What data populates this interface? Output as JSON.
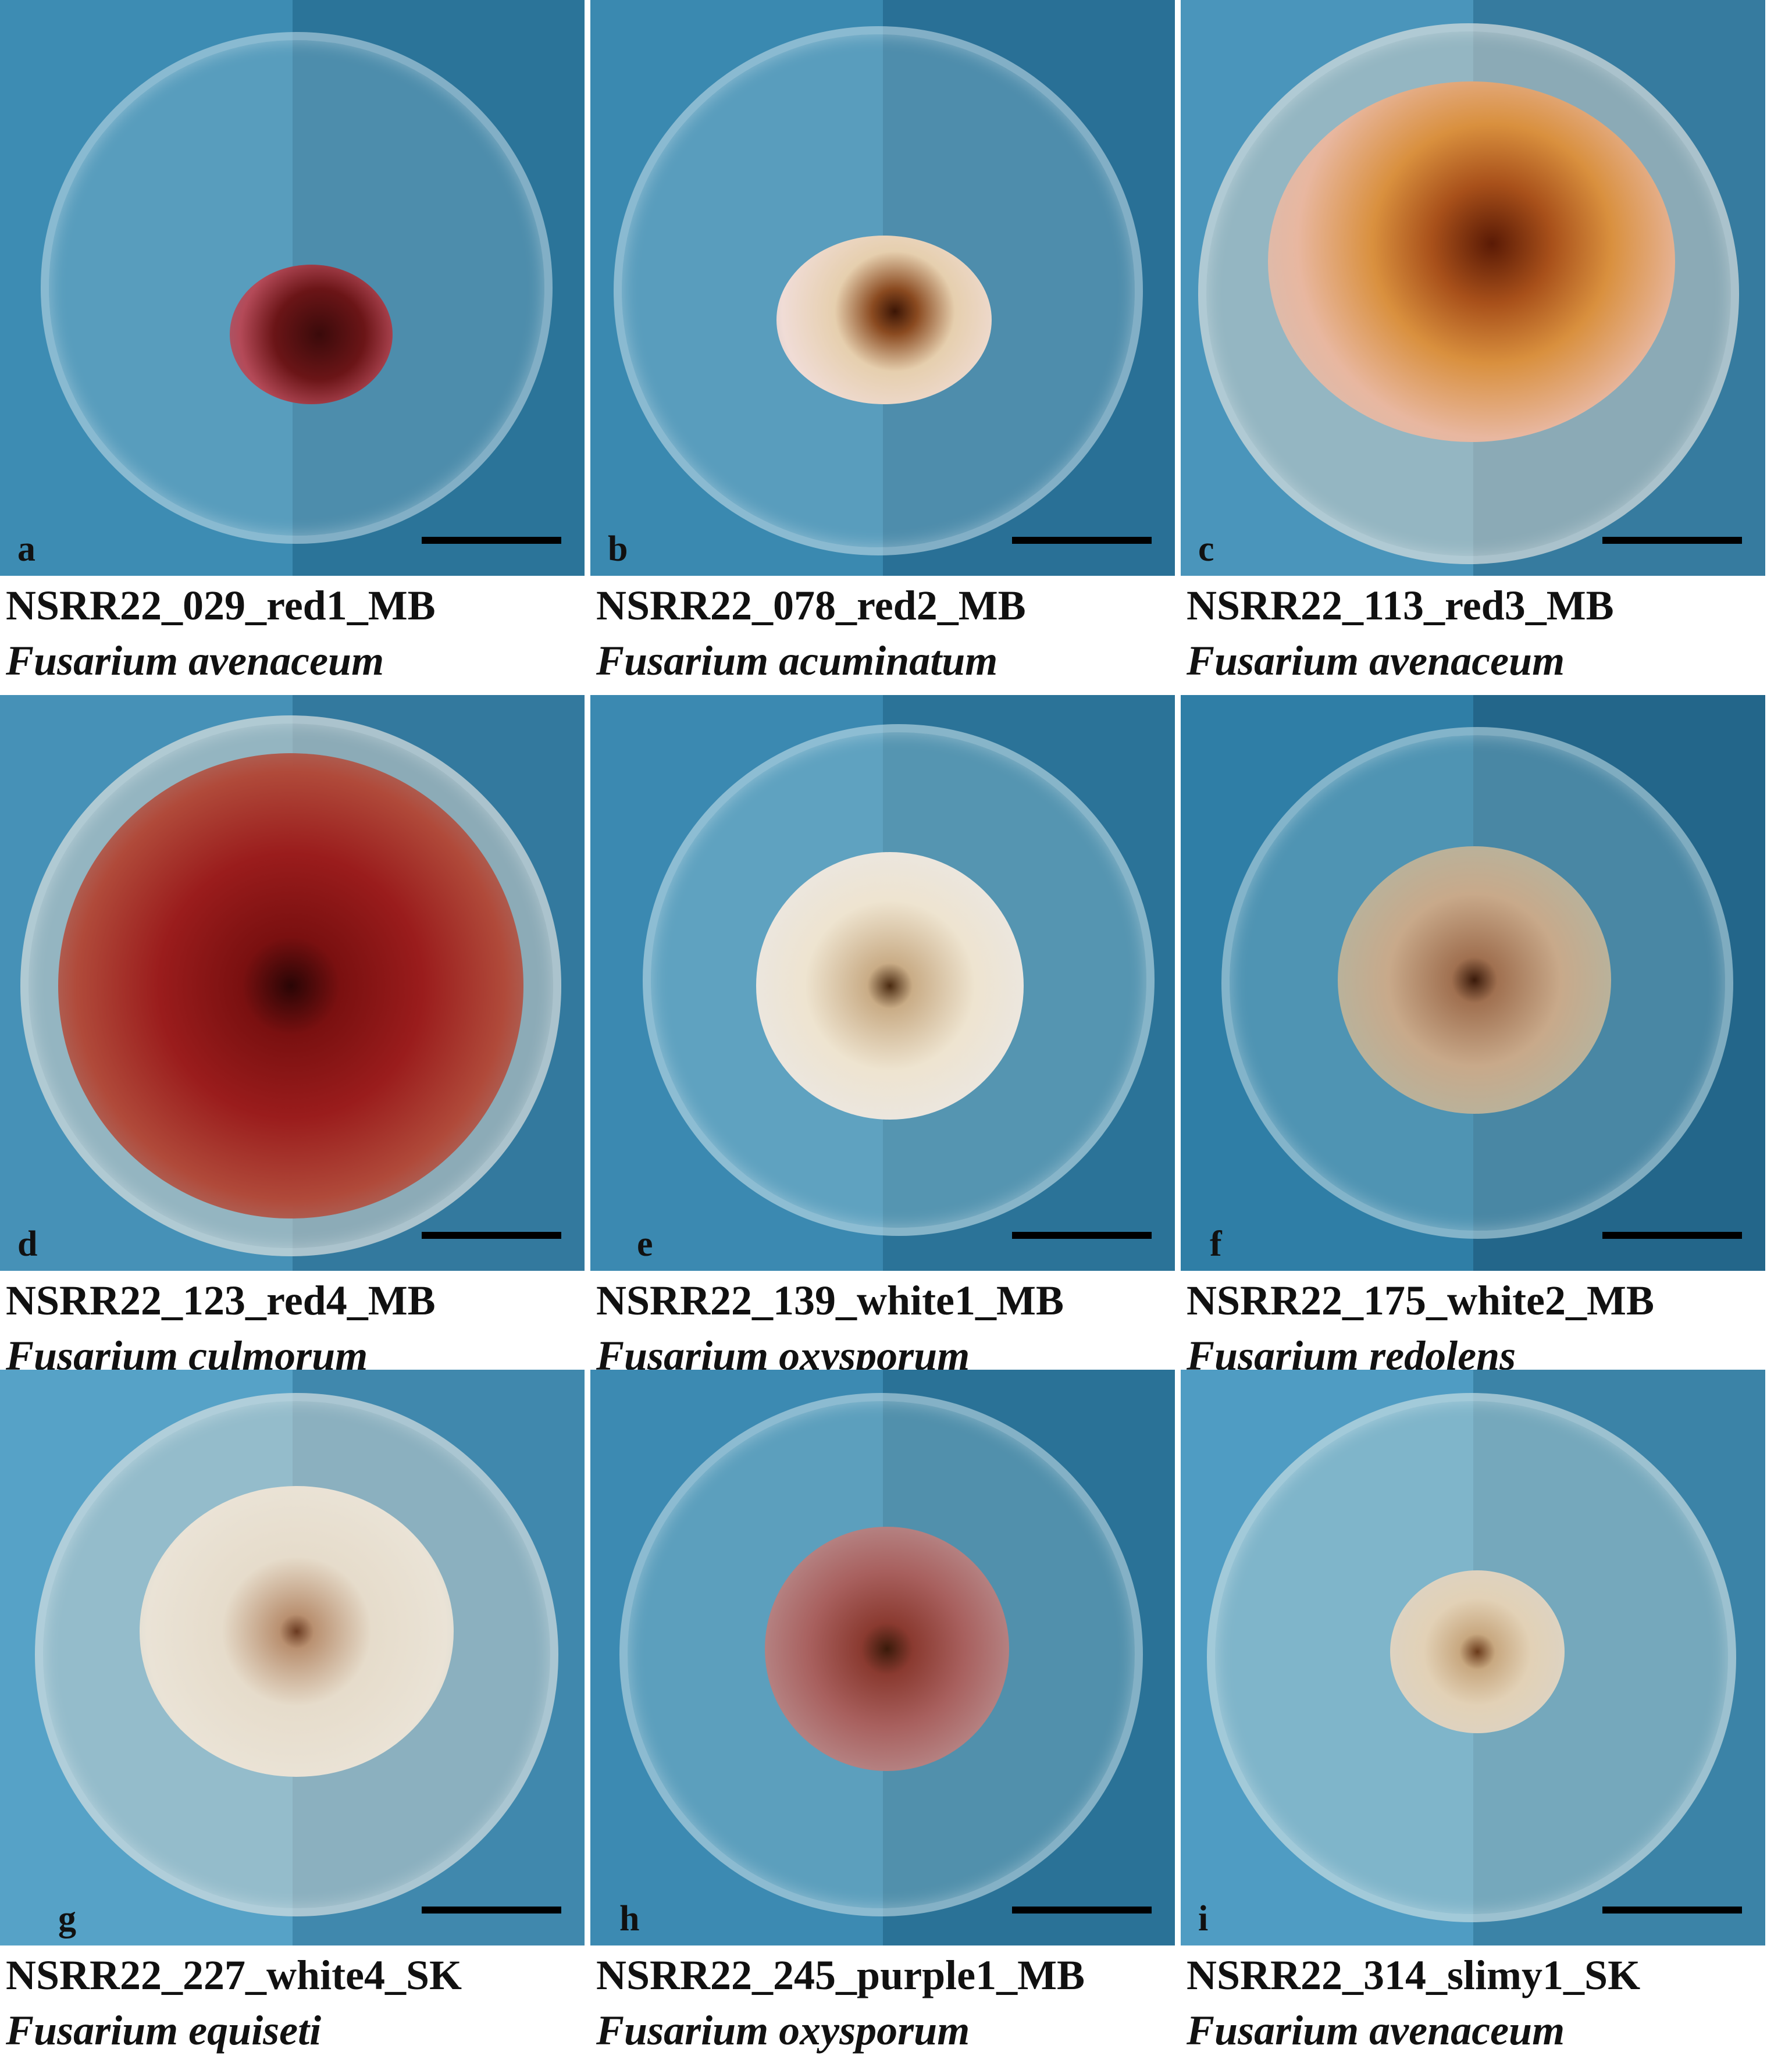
{
  "panels": [
    {
      "letter": "a",
      "isolate": "NSRR22_029_red1_MB",
      "species": "Fusarium avenaceum"
    },
    {
      "letter": "b",
      "isolate": "NSRR22_078_red2_MB",
      "species": "Fusarium acuminatum"
    },
    {
      "letter": "c",
      "isolate": "NSRR22_113_red3_MB",
      "species": "Fusarium avenaceum"
    },
    {
      "letter": "d",
      "isolate": "NSRR22_123_red4_MB",
      "species": "Fusarium culmorum"
    },
    {
      "letter": "e",
      "isolate": "NSRR22_139_white1_MB",
      "species": "Fusarium oxysporum"
    },
    {
      "letter": "f",
      "isolate": "NSRR22_175_white2_MB",
      "species": "Fusarium redolens"
    },
    {
      "letter": "g",
      "isolate": "NSRR22_227_white4_SK",
      "species": "Fusarium equiseti"
    },
    {
      "letter": "h",
      "isolate": "NSRR22_245_purple1_MB",
      "species": "Fusarium oxysporum"
    },
    {
      "letter": "i",
      "isolate": "NSRR22_314_slimy1_SK",
      "species": "Fusarium avenaceum"
    }
  ],
  "colors": {
    "background_blue": "#3f8fb6",
    "scale_bar": "#000000"
  }
}
